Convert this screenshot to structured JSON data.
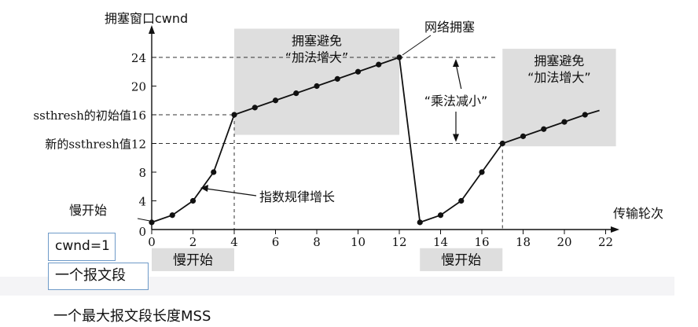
{
  "chart_data": {
    "type": "line",
    "xlabel": "传输轮次",
    "ylabel": "拥塞窗口cwnd",
    "xlim": [
      0,
      22
    ],
    "ylim": [
      0,
      24
    ],
    "x_ticks": [
      0,
      2,
      4,
      6,
      8,
      10,
      12,
      14,
      16,
      18,
      20,
      22
    ],
    "y_ticks": [
      4,
      8,
      12,
      16,
      20,
      24
    ],
    "y_tick_labels": {
      "16": "ssthresh的初始值16",
      "12": "新的ssthresh值12"
    },
    "series": [
      {
        "x": [
          0,
          1,
          2,
          3,
          4,
          5,
          6,
          7,
          8,
          9,
          10,
          11,
          12,
          13,
          14,
          15,
          16,
          17,
          18,
          19,
          20,
          21
        ],
        "y": [
          1,
          2,
          4,
          8,
          16,
          17,
          18,
          19,
          20,
          21,
          22,
          23,
          24,
          1,
          2,
          4,
          8,
          12,
          13,
          14,
          15,
          16
        ],
        "trend_end": {
          "x": 21.7,
          "y": 16.6
        }
      }
    ],
    "shaded_regions": [
      {
        "label": "拥塞避免\n“加法增大”",
        "x": [
          4,
          12
        ],
        "y": [
          13.2,
          28
        ]
      },
      {
        "label": "拥塞避免\n“加法增大”",
        "x": [
          17,
          22.5
        ],
        "y": [
          11.6,
          25.2
        ]
      },
      {
        "label": "慢开始",
        "x": [
          0,
          4
        ],
        "y": [
          -5.8,
          -2.6
        ]
      },
      {
        "label": "慢开始",
        "x": [
          13,
          17
        ],
        "y": [
          -5.8,
          -2.6
        ]
      }
    ],
    "annotations": {
      "slow_start_point": "慢开始",
      "exponential": "指数规律增长",
      "congestion": "网络拥塞",
      "multiplicative_decrease": "“乘法减小”"
    }
  },
  "callouts": {
    "cwnd": "cwnd=1",
    "segment": "一个报文段",
    "mss": "一个最大报文段长度MSS"
  },
  "colors": {
    "line": "#111111",
    "shade": "#dedede",
    "callout_border": "#6e9ac8",
    "bottom_band": "#f4f4f6"
  }
}
